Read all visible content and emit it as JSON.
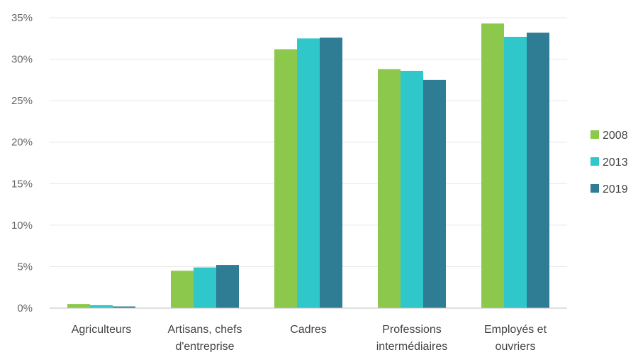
{
  "chart_data": {
    "type": "bar",
    "categories": [
      [
        "Agriculteurs"
      ],
      [
        "Artisans, chefs",
        "d'entreprise"
      ],
      [
        "Cadres"
      ],
      [
        "Professions",
        "intermédiaires"
      ],
      [
        "Employés et",
        "ouvriers"
      ]
    ],
    "series": [
      {
        "name": "2008",
        "color": "#8cc84b",
        "values": [
          0.5,
          4.5,
          31.2,
          28.8,
          34.3
        ]
      },
      {
        "name": "2013",
        "color": "#2fc7c9",
        "values": [
          0.35,
          4.9,
          32.5,
          28.6,
          32.7
        ]
      },
      {
        "name": "2019",
        "color": "#2e7d95",
        "values": [
          0.2,
          5.2,
          32.6,
          27.5,
          33.2
        ]
      }
    ],
    "y_ticks": [
      "0%",
      "5%",
      "10%",
      "15%",
      "20%",
      "25%",
      "30%",
      "35%"
    ],
    "ylim": [
      0,
      35
    ],
    "grid": true,
    "legend_position": "right"
  }
}
